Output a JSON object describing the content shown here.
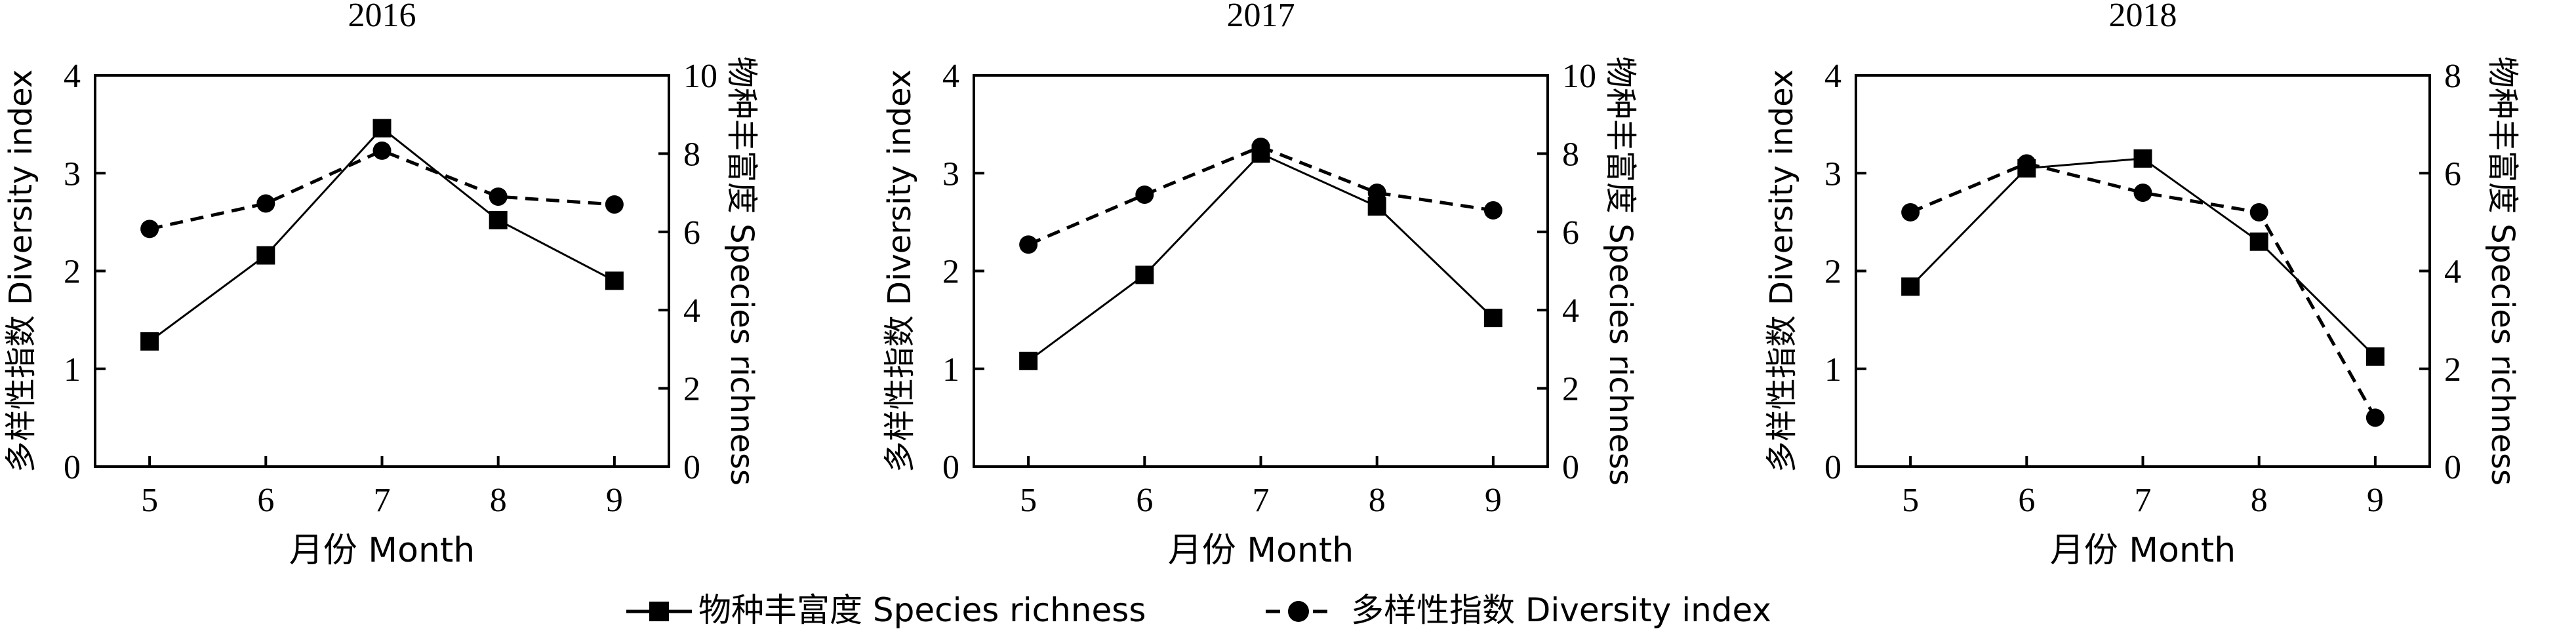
{
  "chart_data": [
    {
      "type": "line",
      "title": "2016",
      "xlabel": "月份 Month",
      "ylabel_left": "多样性指数 Diversity index",
      "ylabel_right": "物种丰富度 Species richness",
      "x": [
        5,
        6,
        7,
        8,
        9
      ],
      "x_ticks": [
        "5",
        "6",
        "7",
        "8",
        "9"
      ],
      "ylim_left": [
        0,
        4
      ],
      "yticks_left": [
        "0",
        "1",
        "2",
        "3",
        "4"
      ],
      "ylim_right": [
        0,
        10
      ],
      "yticks_right": [
        "0",
        "2",
        "4",
        "6",
        "8",
        "10"
      ],
      "series": [
        {
          "name": "物种丰富度 Species richness",
          "axis": "right",
          "values": [
            3.2,
            5.4,
            8.65,
            6.3,
            4.75
          ]
        },
        {
          "name": "多样性指数 Diversity index",
          "axis": "left",
          "values": [
            2.43,
            2.69,
            3.23,
            2.76,
            2.68
          ]
        }
      ]
    },
    {
      "type": "line",
      "title": "2017",
      "xlabel": "月份 Month",
      "ylabel_left": "多样性指数 Diversity index",
      "ylabel_right": "物种丰富度 Species richness",
      "x": [
        5,
        6,
        7,
        8,
        9
      ],
      "x_ticks": [
        "5",
        "6",
        "7",
        "8",
        "9"
      ],
      "ylim_left": [
        0,
        4
      ],
      "yticks_left": [
        "0",
        "1",
        "2",
        "3",
        "4"
      ],
      "ylim_right": [
        0,
        10
      ],
      "yticks_right": [
        "0",
        "2",
        "4",
        "6",
        "8",
        "10"
      ],
      "series": [
        {
          "name": "物种丰富度 Species richness",
          "axis": "right",
          "values": [
            2.7,
            4.9,
            8.0,
            6.65,
            3.8
          ]
        },
        {
          "name": "多样性指数 Diversity index",
          "axis": "left",
          "values": [
            2.27,
            2.78,
            3.27,
            2.8,
            2.62
          ]
        }
      ]
    },
    {
      "type": "line",
      "title": "2018",
      "xlabel": "月份 Month",
      "ylabel_left": "多样性指数 Diversity index",
      "ylabel_right": "物种丰富度 Species richness",
      "x": [
        5,
        6,
        7,
        8,
        9
      ],
      "x_ticks": [
        "5",
        "6",
        "7",
        "8",
        "9"
      ],
      "ylim_left": [
        0,
        4
      ],
      "yticks_left": [
        "0",
        "1",
        "2",
        "3",
        "4"
      ],
      "ylim_right": [
        0,
        8
      ],
      "yticks_right": [
        "0",
        "2",
        "4",
        "6",
        "8"
      ],
      "series": [
        {
          "name": "物种丰富度 Species richness",
          "axis": "right",
          "values": [
            3.68,
            6.1,
            6.3,
            4.6,
            2.25
          ]
        },
        {
          "name": "多样性指数 Diversity index",
          "axis": "left",
          "values": [
            2.6,
            3.1,
            2.8,
            2.6,
            0.5
          ]
        }
      ]
    }
  ],
  "legend": {
    "richness_label": "物种丰富度 Species richness",
    "diversity_label": "多样性指数 Diversity index"
  }
}
